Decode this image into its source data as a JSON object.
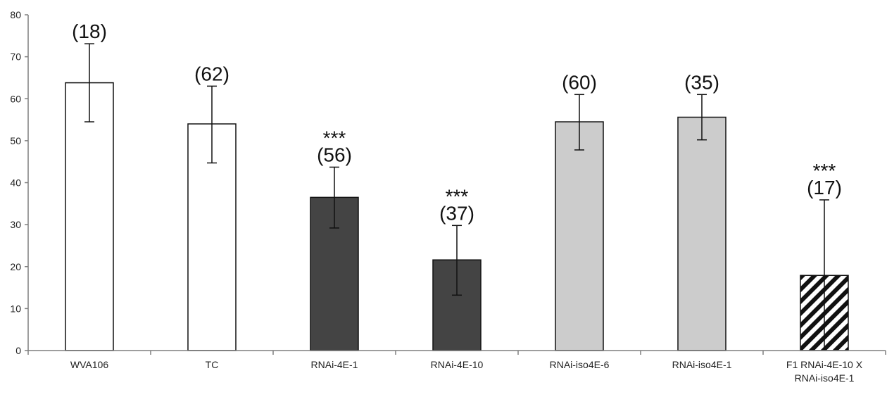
{
  "chart_data": {
    "type": "bar",
    "title": "",
    "xlabel": "",
    "ylabel": "",
    "ylim": [
      0,
      80
    ],
    "yticks": [
      0,
      10,
      20,
      30,
      40,
      50,
      60,
      70,
      80
    ],
    "grid": false,
    "categories": [
      "WVA106",
      "TC",
      "RNAi-4E-1",
      "RNAi-4E-10",
      "RNAi-iso4E-6",
      "RNAi-iso4E-1",
      "F1 RNAi-4E-10 X RNAi-iso4E-1"
    ],
    "category_lines": [
      [
        "WVA106"
      ],
      [
        "TC"
      ],
      [
        "RNAi-4E-1"
      ],
      [
        "RNAi-4E-10"
      ],
      [
        "RNAi-iso4E-6"
      ],
      [
        "RNAi-iso4E-1"
      ],
      [
        "F1 RNAi-4E-10 X",
        "RNAi-iso4E-1"
      ]
    ],
    "values": [
      63.8,
      54.0,
      36.5,
      21.6,
      54.5,
      55.6,
      17.9
    ],
    "error_low": [
      54.5,
      44.7,
      29.2,
      13.2,
      47.8,
      50.2,
      0
    ],
    "error_high": [
      73.1,
      63.0,
      43.7,
      29.8,
      61.0,
      61.0,
      35.9
    ],
    "n_labels": [
      "(18)",
      "(62)",
      "(56)",
      "(37)",
      "(60)",
      "(35)",
      "(17)"
    ],
    "significance": [
      "",
      "",
      "***",
      "***",
      "",
      "",
      "***"
    ],
    "bar_fills": [
      "white",
      "white",
      "dark",
      "dark",
      "light",
      "light",
      "hatched"
    ],
    "colors": {
      "white": "#ffffff",
      "dark": "#444444",
      "light": "#cccccc",
      "hatch_stroke": "#111111",
      "outline": "#111111",
      "axis": "#7f7f7f"
    }
  }
}
